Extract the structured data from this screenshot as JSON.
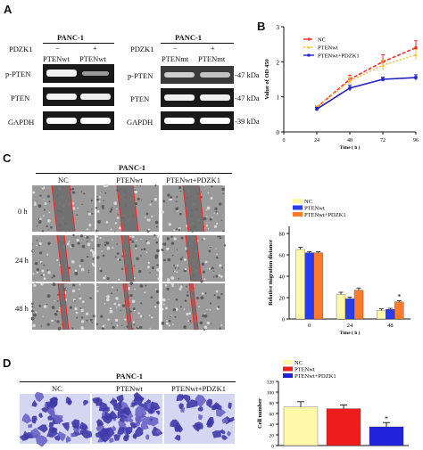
{
  "panels": {
    "a": {
      "letter": "A"
    },
    "b": {
      "letter": "B"
    },
    "c": {
      "letter": "C"
    },
    "d": {
      "letter": "D"
    }
  },
  "western_left": {
    "cell_line": "PANC-1",
    "pdzk1_label": "PDZK1",
    "pdzk1_minus": "−",
    "pdzk1_plus": "+",
    "lane_labels": [
      "PTENwt",
      "PTENwt"
    ],
    "bands": [
      "p-PTEN",
      "PTEN",
      "GAPDH"
    ]
  },
  "western_right": {
    "cell_line": "PANC-1",
    "pdzk1_label": "PDZK1",
    "pdzk1_minus": "−",
    "pdzk1_plus": "+",
    "lane_labels": [
      "PTENmt",
      "PTENmt"
    ],
    "bands": [
      "p-PTEN",
      "PTEN",
      "GAPDH"
    ],
    "kda": [
      "-47 kDa",
      "-47 kDa",
      "-39 kDa"
    ]
  },
  "wound": {
    "cell_line": "PANC-1",
    "columns": [
      "NC",
      "PTENwt",
      "PTENwt+PDZK1"
    ],
    "rows": [
      "0 h",
      "24 h",
      "48 h"
    ]
  },
  "transwell": {
    "cell_line": "PANC-1",
    "columns": [
      "NC",
      "PTENwt",
      "PTENwt+PDZK1"
    ]
  },
  "colors": {
    "nc": "#ff2a2a",
    "ptenwt_line": "#f5c242",
    "ptenwt_pdzk1_line": "#2020c8",
    "bar_nc": "#fff8a8",
    "bar_ptenwt": "#2a3cf0",
    "bar_ptenwt_pdzk1": "#ff7a2a",
    "barD_nc": "#fff8a8",
    "barD_ptenwt": "#ee1c1c",
    "barD_ptenwt_pdzk1": "#2222dd"
  },
  "chart_data": [
    {
      "id": "B",
      "type": "line",
      "title": "",
      "xlabel": "Time ( h )",
      "ylabel": "Value of OD 450",
      "x": [
        24,
        48,
        72,
        96
      ],
      "xticks": [
        "0",
        "24",
        "48",
        "72",
        "96"
      ],
      "xlim": [
        0,
        96
      ],
      "yticks": [
        "0",
        "1",
        "2",
        "3"
      ],
      "ylim": [
        0,
        3
      ],
      "series": [
        {
          "name": "NC",
          "values": [
            0.7,
            1.5,
            2.0,
            2.4
          ],
          "errors": [
            0.05,
            0.12,
            0.2,
            0.2
          ]
        },
        {
          "name": "PTENwt",
          "values": [
            0.7,
            1.45,
            1.9,
            2.2
          ],
          "errors": [
            0.05,
            0.12,
            0.15,
            0.15
          ]
        },
        {
          "name": "PTENwt+PDZK1",
          "values": [
            0.65,
            1.25,
            1.5,
            1.55
          ],
          "errors": [
            0.05,
            0.08,
            0.06,
            0.08
          ]
        }
      ],
      "legend": "top-right"
    },
    {
      "id": "C",
      "type": "bar",
      "xlabel": "Time ( h )",
      "ylabel": "Relative migration distance",
      "categories": [
        "0",
        "24",
        "48"
      ],
      "yticks": [
        "0",
        "20",
        "40",
        "60",
        "80"
      ],
      "ylim": [
        0,
        80
      ],
      "series": [
        {
          "name": "NC",
          "values": [
            65,
            23,
            8
          ],
          "errors": [
            2,
            2,
            1.5
          ]
        },
        {
          "name": "PTENwt",
          "values": [
            62,
            19,
            9
          ],
          "errors": [
            1,
            1.5,
            1
          ]
        },
        {
          "name": "PTENwt+PDZK1",
          "values": [
            62,
            27,
            16
          ],
          "errors": [
            1,
            2,
            1
          ]
        }
      ],
      "annotations": [
        {
          "text": "*",
          "category": "48",
          "series": "PTENwt+PDZK1"
        }
      ],
      "legend": "top-left"
    },
    {
      "id": "D",
      "type": "bar",
      "xlabel": "",
      "ylabel": "Cell number",
      "categories": [
        "NC",
        "PTENwt",
        "PTENwt+PDZK1"
      ],
      "show_category_labels": false,
      "yticks": [
        "0",
        "20",
        "40",
        "60",
        "80",
        "100",
        "120"
      ],
      "ylim": [
        0,
        120
      ],
      "values": [
        72,
        69,
        35
      ],
      "errors": [
        10,
        7,
        8
      ],
      "annotations": [
        {
          "text": "*",
          "category": "PTENwt+PDZK1"
        }
      ],
      "legend": "top-left"
    }
  ]
}
